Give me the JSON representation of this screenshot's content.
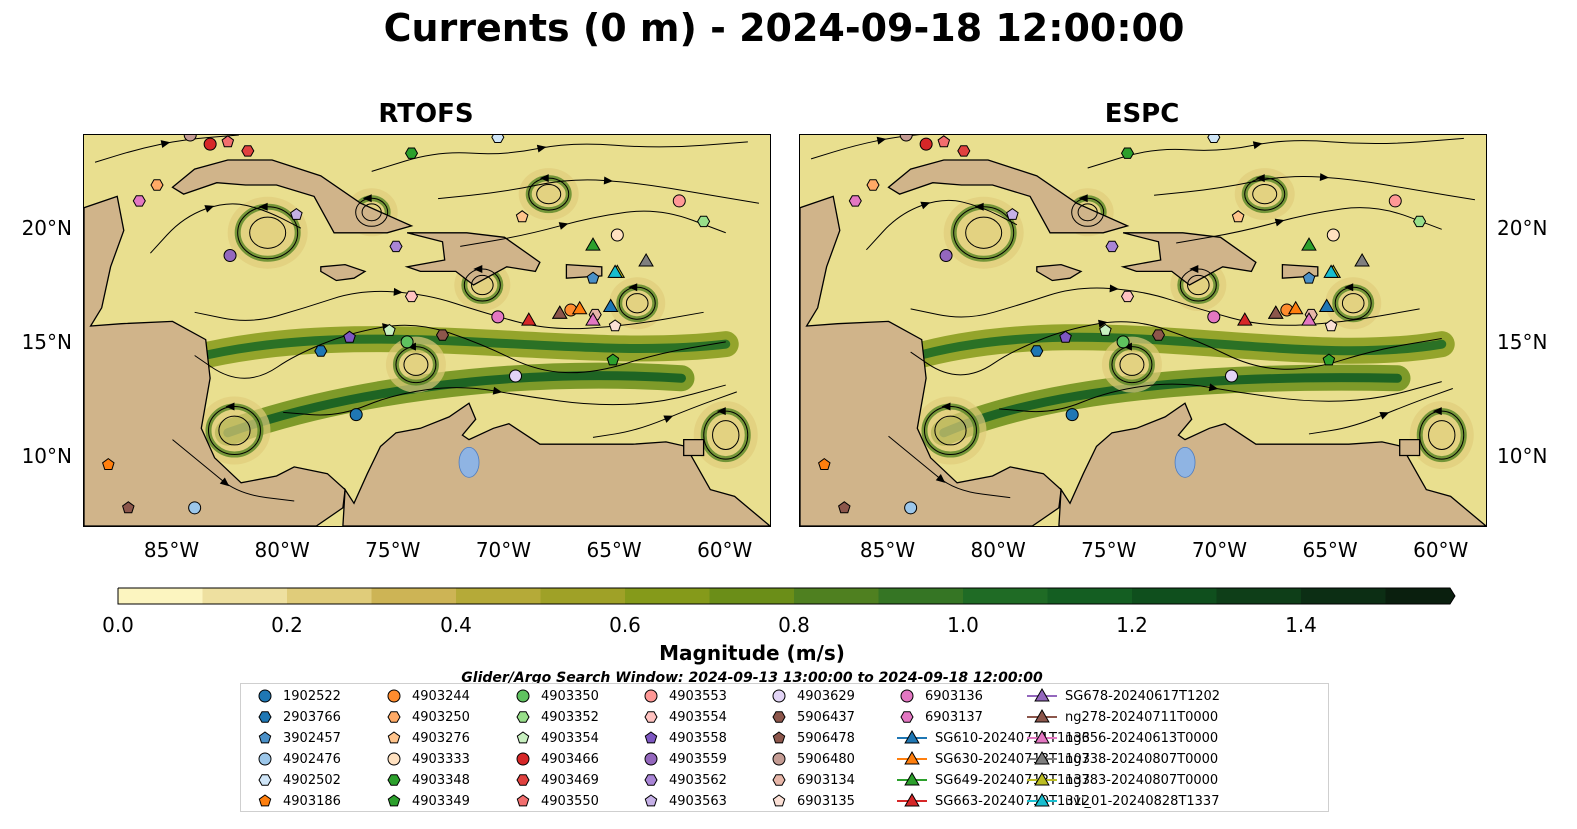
{
  "title": "Currents (0 m) - 2024-09-18 12:00:00",
  "panels": [
    {
      "title": "RTOFS"
    },
    {
      "title": "ESPC"
    }
  ],
  "axes": {
    "x_ticks": [
      "85°W",
      "80°W",
      "75°W",
      "70°W",
      "65°W",
      "60°W"
    ],
    "y_ticks": [
      "20°N",
      "15°N",
      "10°N"
    ]
  },
  "colorbar": {
    "label": "Magnitude (m/s)",
    "ticks": [
      "0.0",
      "0.2",
      "0.4",
      "0.6",
      "0.8",
      "1.0",
      "1.2",
      "1.4"
    ],
    "colors": [
      "#fcf5c0",
      "#eee0a0",
      "#e0cc7a",
      "#cdb455",
      "#b5aa38",
      "#9fa127",
      "#859a1a",
      "#6b8e18",
      "#4f8020",
      "#357524",
      "#1f6b25",
      "#145e22",
      "#0f4f1d",
      "#0e3e18",
      "#0c2e14",
      "#0a1f0e"
    ]
  },
  "search_window": "Glider/Argo Search Window: 2024-09-13 13:00:00 to 2024-09-18 12:00:00",
  "chart_data": [
    {
      "type": "map",
      "title": "RTOFS",
      "xlim": [
        -89,
        -58
      ],
      "ylim": [
        7,
        24.2
      ],
      "x_ticks": [
        -85,
        -80,
        -75,
        -70,
        -65,
        -60
      ],
      "y_ticks": [
        20,
        15,
        10
      ],
      "variable": "surface current magnitude (m/s) with streamlines",
      "argo_floats": [
        {
          "id": "1902522",
          "lon": -76.7,
          "lat": 11.9
        },
        {
          "id": "2903766",
          "lon": -78.3,
          "lat": 14.7
        },
        {
          "id": "3902457",
          "lon": -66.0,
          "lat": 17.9
        },
        {
          "id": "4902476",
          "lon": -84.0,
          "lat": 7.8
        },
        {
          "id": "4902502",
          "lon": -70.3,
          "lat": 24.1
        },
        {
          "id": "4903186",
          "lon": -87.9,
          "lat": 9.7
        },
        {
          "id": "4903244",
          "lon": -67.0,
          "lat": 16.5
        },
        {
          "id": "4903250",
          "lon": -85.7,
          "lat": 22.0
        },
        {
          "id": "4903276",
          "lon": -69.2,
          "lat": 20.6
        },
        {
          "id": "4903333",
          "lon": -64.9,
          "lat": 19.8
        },
        {
          "id": "4903348",
          "lon": -74.2,
          "lat": 23.4
        },
        {
          "id": "4903349",
          "lon": -65.1,
          "lat": 14.3
        },
        {
          "id": "4903350",
          "lon": -74.4,
          "lat": 15.1
        },
        {
          "id": "4903352",
          "lon": -61.0,
          "lat": 20.4
        },
        {
          "id": "4903354",
          "lon": -75.2,
          "lat": 15.6
        },
        {
          "id": "4903466",
          "lon": -83.3,
          "lat": 23.8
        },
        {
          "id": "4903469",
          "lon": -81.6,
          "lat": 23.5
        },
        {
          "id": "4903550",
          "lon": -82.5,
          "lat": 23.9
        },
        {
          "id": "4903553",
          "lon": -62.1,
          "lat": 21.3
        },
        {
          "id": "4903554",
          "lon": -74.2,
          "lat": 17.1
        },
        {
          "id": "4903558",
          "lon": -77.0,
          "lat": 15.3
        },
        {
          "id": "4903559",
          "lon": -82.4,
          "lat": 18.9
        },
        {
          "id": "4903562",
          "lon": -74.9,
          "lat": 19.3
        },
        {
          "id": "4903563",
          "lon": -79.4,
          "lat": 20.7
        },
        {
          "id": "4903629",
          "lon": -69.5,
          "lat": 13.6
        },
        {
          "id": "5906437",
          "lon": -72.8,
          "lat": 15.4
        },
        {
          "id": "5906478",
          "lon": -87.0,
          "lat": 7.8
        },
        {
          "id": "5906480",
          "lon": -84.2,
          "lat": 24.2
        },
        {
          "id": "6903134",
          "lon": -65.9,
          "lat": 16.3
        },
        {
          "id": "6903135",
          "lon": -65.0,
          "lat": 15.8
        },
        {
          "id": "6903136",
          "lon": -70.3,
          "lat": 16.2
        },
        {
          "id": "6903137",
          "lon": -86.5,
          "lat": 21.3
        }
      ],
      "gliders": [
        {
          "id": "SG610-20240711T1133",
          "lon": -65.2,
          "lat": 16.7
        },
        {
          "id": "SG630-20240713T1103",
          "lon": -66.6,
          "lat": 16.6
        },
        {
          "id": "SG649-20240712T1133",
          "lon": -66.0,
          "lat": 19.4
        },
        {
          "id": "SG663-20240710T1312",
          "lon": -68.9,
          "lat": 16.1
        },
        {
          "id": "SG678-20240617T1202",
          "lon": -67.5,
          "lat": 16.4
        },
        {
          "id": "ng278-20240711T0000",
          "lon": -67.5,
          "lat": 16.4
        },
        {
          "id": "ng656-20240613T0000",
          "lon": -66.0,
          "lat": 16.1
        },
        {
          "id": "ng738-20240807T0000",
          "lon": -63.6,
          "lat": 18.7
        },
        {
          "id": "ng783-20240807T0000",
          "lon": -64.9,
          "lat": 18.2
        },
        {
          "id": "uvi_01-20240828T1337",
          "lon": -65.0,
          "lat": 18.2
        }
      ]
    },
    {
      "type": "map",
      "title": "ESPC",
      "xlim": [
        -89,
        -58
      ],
      "ylim": [
        7,
        24.2
      ],
      "x_ticks": [
        -85,
        -80,
        -75,
        -70,
        -65,
        -60
      ],
      "y_ticks": [
        20,
        15,
        10
      ],
      "variable": "surface current magnitude (m/s) with streamlines",
      "argo_floats": "same positions as RTOFS panel",
      "gliders": "same positions as RTOFS panel"
    }
  ],
  "legend": [
    {
      "label": "1902522",
      "marker": "circle",
      "color": "#1f77b4"
    },
    {
      "label": "2903766",
      "marker": "hexagon",
      "color": "#1f77b4"
    },
    {
      "label": "3902457",
      "marker": "pentagon",
      "color": "#4a90c8"
    },
    {
      "label": "4902476",
      "marker": "circle",
      "color": "#9cc7ea"
    },
    {
      "label": "4902502",
      "marker": "hexagon",
      "color": "#cfe5f7"
    },
    {
      "label": "4903186",
      "marker": "pentagon",
      "color": "#ff7f0e"
    },
    {
      "label": "4903244",
      "marker": "circle",
      "color": "#ff8c2e"
    },
    {
      "label": "4903250",
      "marker": "hexagon",
      "color": "#ffaa66"
    },
    {
      "label": "4903276",
      "marker": "pentagon",
      "color": "#ffc48c"
    },
    {
      "label": "4903333",
      "marker": "circle",
      "color": "#ffe1c0"
    },
    {
      "label": "4903348",
      "marker": "hexagon",
      "color": "#2ca02c"
    },
    {
      "label": "4903349",
      "marker": "pentagon",
      "color": "#2ca02c"
    },
    {
      "label": "4903350",
      "marker": "circle",
      "color": "#5fc25f"
    },
    {
      "label": "4903352",
      "marker": "hexagon",
      "color": "#98df8a"
    },
    {
      "label": "4903354",
      "marker": "pentagon",
      "color": "#c8f0c0"
    },
    {
      "label": "4903466",
      "marker": "circle",
      "color": "#d62728"
    },
    {
      "label": "4903469",
      "marker": "hexagon",
      "color": "#e0413f"
    },
    {
      "label": "4903550",
      "marker": "pentagon",
      "color": "#f26e6e"
    },
    {
      "label": "4903553",
      "marker": "circle",
      "color": "#ff9896"
    },
    {
      "label": "4903554",
      "marker": "hexagon",
      "color": "#ffc2c0"
    },
    {
      "label": "4903558",
      "marker": "pentagon",
      "color": "#7e57c2"
    },
    {
      "label": "4903559",
      "marker": "circle",
      "color": "#9467bd"
    },
    {
      "label": "4903562",
      "marker": "hexagon",
      "color": "#a985d6"
    },
    {
      "label": "4903563",
      "marker": "pentagon",
      "color": "#c5b0e6"
    },
    {
      "label": "4903629",
      "marker": "circle",
      "color": "#e2d4f5"
    },
    {
      "label": "5906437",
      "marker": "hexagon",
      "color": "#8c564b"
    },
    {
      "label": "5906478",
      "marker": "pentagon",
      "color": "#8c564b"
    },
    {
      "label": "5906480",
      "marker": "circle",
      "color": "#c49c94"
    },
    {
      "label": "6903134",
      "marker": "hexagon",
      "color": "#e7b6a8"
    },
    {
      "label": "6903135",
      "marker": "pentagon",
      "color": "#fbe0d6"
    },
    {
      "label": "6903136",
      "marker": "circle",
      "color": "#e377c2"
    },
    {
      "label": "6903137",
      "marker": "hexagon",
      "color": "#e377c2"
    },
    {
      "label": "SG610-20240711T1133",
      "marker": "triangle-line",
      "color": "#1f77b4"
    },
    {
      "label": "SG630-20240713T1103",
      "marker": "triangle-line",
      "color": "#ff7f0e"
    },
    {
      "label": "SG649-20240712T1133",
      "marker": "triangle-line",
      "color": "#2ca02c"
    },
    {
      "label": "SG663-20240710T1312",
      "marker": "triangle-line",
      "color": "#d62728"
    },
    {
      "label": "SG678-20240617T1202",
      "marker": "triangle-line",
      "color": "#9467bd"
    },
    {
      "label": "ng278-20240711T0000",
      "marker": "triangle-line",
      "color": "#8c564b"
    },
    {
      "label": "ng656-20240613T0000",
      "marker": "triangle-line",
      "color": "#e377c2"
    },
    {
      "label": "ng738-20240807T0000",
      "marker": "triangle-line",
      "color": "#7f7f7f"
    },
    {
      "label": "ng783-20240807T0000",
      "marker": "triangle-line",
      "color": "#bcbd22"
    },
    {
      "label": "uvi_01-20240828T1337",
      "marker": "triangle-line",
      "color": "#17becf"
    }
  ]
}
